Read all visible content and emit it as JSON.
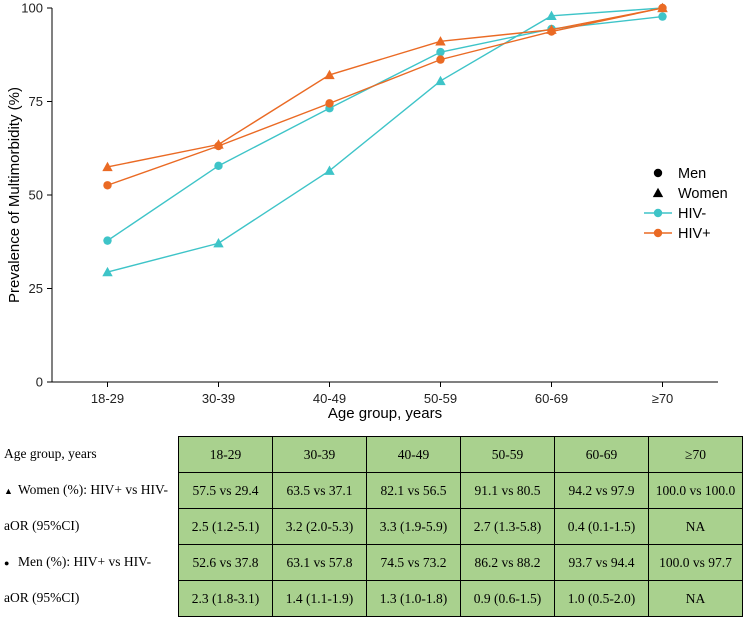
{
  "chart_data": {
    "type": "line",
    "categories": [
      "18-29",
      "30-39",
      "40-49",
      "50-59",
      "60-69",
      "≥70"
    ],
    "xlabel": "Age group, years",
    "ylabel": "Prevalence of Multimorbidity (%)",
    "ylim": [
      0,
      100
    ],
    "yticks": [
      "0",
      "25",
      "50",
      "75",
      "100"
    ],
    "legend": {
      "position": "right",
      "entries": [
        {
          "label": "Men",
          "symbol": "circle"
        },
        {
          "label": "Women",
          "symbol": "triangle"
        },
        {
          "label": "HIV-",
          "color": "#3ec4c8"
        },
        {
          "label": "HIV+",
          "color": "#ea6a24"
        }
      ]
    },
    "series": [
      {
        "name": "HIV- Men",
        "color": "#3ec4c8",
        "marker": "circle",
        "values": [
          37.8,
          57.8,
          73.2,
          88.2,
          94.4,
          97.7
        ]
      },
      {
        "name": "HIV- Women",
        "color": "#3ec4c8",
        "marker": "triangle",
        "values": [
          29.4,
          37.1,
          56.5,
          80.5,
          97.9,
          100.0
        ]
      },
      {
        "name": "HIV+ Men",
        "color": "#ea6a24",
        "marker": "circle",
        "values": [
          52.6,
          63.1,
          74.5,
          86.2,
          93.7,
          100.0
        ]
      },
      {
        "name": "HIV+ Women",
        "color": "#ea6a24",
        "marker": "triangle",
        "values": [
          57.5,
          63.5,
          82.1,
          91.1,
          94.2,
          100.0
        ]
      }
    ]
  },
  "table": {
    "header_label": "Age group, years",
    "header": [
      "18-29",
      "30-39",
      "40-49",
      "50-59",
      "60-69",
      "≥70"
    ],
    "rows": [
      {
        "marker": "▲",
        "label": "Women (%): HIV+ vs HIV-",
        "cells": [
          "57.5 vs 29.4",
          "63.5 vs 37.1",
          "82.1 vs 56.5",
          "91.1 vs 80.5",
          "94.2 vs 97.9",
          "100.0 vs 100.0"
        ]
      },
      {
        "marker": "",
        "label": "aOR (95%CI)",
        "cells": [
          "2.5 (1.2-5.1)",
          "3.2 (2.0-5.3)",
          "3.3 (1.9-5.9)",
          "2.7 (1.3-5.8)",
          "0.4 (0.1-1.5)",
          "NA"
        ]
      },
      {
        "marker": "●",
        "label": "Men (%): HIV+ vs HIV-",
        "cells": [
          "52.6 vs 37.8",
          "63.1 vs 57.8",
          "74.5 vs 73.2",
          "86.2 vs 88.2",
          "93.7 vs 94.4",
          "100.0 vs 97.7"
        ]
      },
      {
        "marker": "",
        "label": "aOR (95%CI)",
        "cells": [
          "2.3 (1.8-3.1)",
          "1.4 (1.1-1.9)",
          "1.3 (1.0-1.8)",
          "0.9 (0.6-1.5)",
          "1.0 (0.5-2.0)",
          "NA"
        ]
      }
    ]
  }
}
